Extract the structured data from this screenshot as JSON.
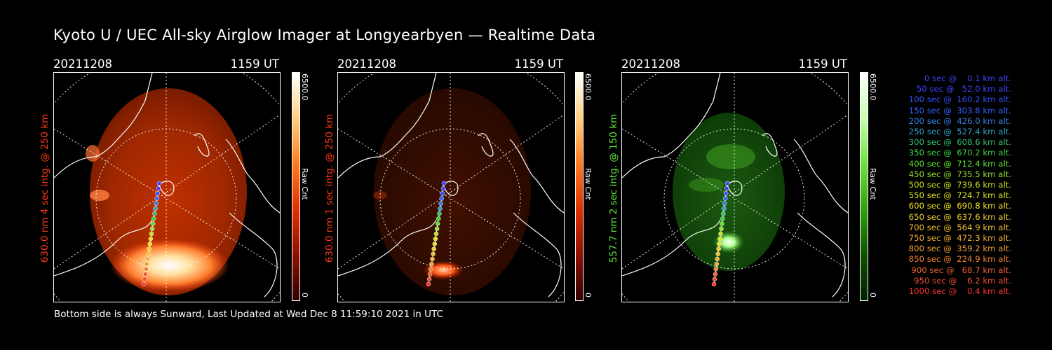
{
  "title": "Kyoto U / UEC All-sky Airglow Imager at Longyearbyen — Realtime Data",
  "footer": "Bottom side is always Sunward, Last Updated at Wed Dec  8 11:59:10 2021 in UTC",
  "panels": [
    {
      "date": "20211208",
      "time": "1159 UT",
      "label": "630.0 nm 4 sec intg. @ 250 km",
      "label_color": "#ff3a1a",
      "cbar_max": "6500.0",
      "cbar_min": "0",
      "cbar_unit": "Raw Cnt",
      "cbar_gradient": [
        "#ffffff",
        "#ffd080",
        "#ff7a20",
        "#e03000",
        "#901000",
        "#300000"
      ]
    },
    {
      "date": "20211208",
      "time": "1159 UT",
      "label": "630.0 nm 1 sec intg. @ 250 km",
      "label_color": "#ff3a1a",
      "cbar_max": "6500.0",
      "cbar_min": "0",
      "cbar_unit": "Raw Cnt",
      "cbar_gradient": [
        "#ffffff",
        "#ffd080",
        "#ff7a20",
        "#e03000",
        "#901000",
        "#300000"
      ]
    },
    {
      "date": "20211208",
      "time": "1159 UT",
      "label": "557.7 nm 2 sec intg. @ 150 km",
      "label_color": "#5fe83a",
      "cbar_max": "6500.0",
      "cbar_min": "0",
      "cbar_unit": "Raw Cnt",
      "cbar_gradient": [
        "#ffffff",
        "#c8ffb0",
        "#70e040",
        "#30a010",
        "#105000",
        "#002000"
      ]
    }
  ],
  "legend": [
    {
      "text": "   0 sec @    0.1 km alt.",
      "color": "#4040ff"
    },
    {
      "text": "  50 sec @   52.0 km alt.",
      "color": "#4040ff"
    },
    {
      "text": " 100 sec @  160.2 km alt.",
      "color": "#3050ff"
    },
    {
      "text": " 150 sec @  303.8 km alt.",
      "color": "#3060ff"
    },
    {
      "text": " 200 sec @  426.0 km alt.",
      "color": "#3080e0"
    },
    {
      "text": " 250 sec @  527.4 km alt.",
      "color": "#30a0c0"
    },
    {
      "text": " 300 sec @  608.6 km alt.",
      "color": "#30c070"
    },
    {
      "text": " 350 sec @  670.2 km alt.",
      "color": "#40d040"
    },
    {
      "text": " 400 sec @  712.4 km alt.",
      "color": "#60e030"
    },
    {
      "text": " 450 sec @  735.5 km alt.",
      "color": "#90e030"
    },
    {
      "text": " 500 sec @  739.6 km alt.",
      "color": "#c0e020"
    },
    {
      "text": " 550 sec @  724.7 km alt.",
      "color": "#e0e020"
    },
    {
      "text": " 600 sec @  690.8 km alt.",
      "color": "#f0e020"
    },
    {
      "text": " 650 sec @  637.6 km alt.",
      "color": "#f0d030"
    },
    {
      "text": " 700 sec @  564.9 km alt.",
      "color": "#f0c030"
    },
    {
      "text": " 750 sec @  472.3 km alt.",
      "color": "#f0b030"
    },
    {
      "text": " 800 sec @  359.2 km alt.",
      "color": "#f0a030"
    },
    {
      "text": " 850 sec @  224.9 km alt.",
      "color": "#f08030"
    },
    {
      "text": " 900 sec @   68.7 km alt.",
      "color": "#f06030"
    },
    {
      "text": " 950 sec @    6.2 km alt.",
      "color": "#f05030"
    },
    {
      "text": "1000 sec @    0.4 km alt.",
      "color": "#ff3030"
    }
  ]
}
